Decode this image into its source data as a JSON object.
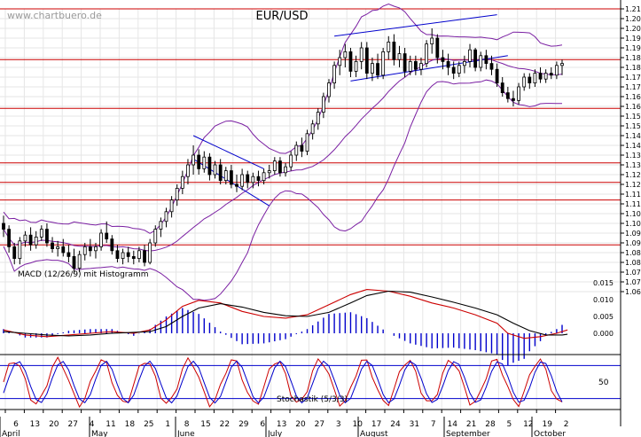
{
  "watermark": "www.chartbuero.de",
  "chart_data": {
    "type": "candlestick",
    "title": "EUR/USD",
    "ylim": [
      1.06,
      1.21
    ],
    "y_ticks": [
      "1.210",
      "1.205",
      "1.200",
      "1.195",
      "1.190",
      "1.185",
      "1.180",
      "1.175",
      "1.170",
      "1.165",
      "1.160",
      "1.155",
      "1.150",
      "1.145",
      "1.140",
      "1.135",
      "1.130",
      "1.125",
      "1.120",
      "1.115",
      "1.110",
      "1.105",
      "1.100",
      "1.095",
      "1.090",
      "1.085",
      "1.080",
      "1.075",
      "1.070",
      "1.065"
    ],
    "x_day_ticks": [
      "6",
      "13",
      "20",
      "27",
      "4",
      "11",
      "18",
      "25",
      "1",
      "8",
      "15",
      "22",
      "29",
      "6",
      "13",
      "20",
      "27",
      "3",
      "10",
      "17",
      "24",
      "31",
      "7",
      "14",
      "21",
      "28",
      "5",
      "12",
      "19",
      "2"
    ],
    "x_month_labels": [
      "April",
      "May",
      "June",
      "July",
      "August",
      "September",
      "October"
    ],
    "resistance_lines": [
      1.21,
      1.184,
      1.159,
      1.131,
      1.121,
      1.112,
      1.089
    ],
    "candles": [
      {
        "o": 1.1,
        "h": 1.104,
        "l": 1.093,
        "c": 1.097
      },
      {
        "o": 1.097,
        "h": 1.099,
        "l": 1.085,
        "c": 1.088
      },
      {
        "o": 1.088,
        "h": 1.09,
        "l": 1.079,
        "c": 1.082
      },
      {
        "o": 1.082,
        "h": 1.093,
        "l": 1.079,
        "c": 1.091
      },
      {
        "o": 1.091,
        "h": 1.096,
        "l": 1.088,
        "c": 1.094
      },
      {
        "o": 1.094,
        "h": 1.098,
        "l": 1.086,
        "c": 1.089
      },
      {
        "o": 1.089,
        "h": 1.096,
        "l": 1.087,
        "c": 1.093
      },
      {
        "o": 1.093,
        "h": 1.099,
        "l": 1.091,
        "c": 1.097
      },
      {
        "o": 1.097,
        "h": 1.1,
        "l": 1.088,
        "c": 1.09
      },
      {
        "o": 1.09,
        "h": 1.093,
        "l": 1.085,
        "c": 1.087
      },
      {
        "o": 1.087,
        "h": 1.091,
        "l": 1.083,
        "c": 1.088
      },
      {
        "o": 1.088,
        "h": 1.092,
        "l": 1.083,
        "c": 1.085
      },
      {
        "o": 1.085,
        "h": 1.089,
        "l": 1.08,
        "c": 1.083
      },
      {
        "o": 1.083,
        "h": 1.087,
        "l": 1.074,
        "c": 1.077
      },
      {
        "o": 1.077,
        "h": 1.086,
        "l": 1.075,
        "c": 1.084
      },
      {
        "o": 1.084,
        "h": 1.09,
        "l": 1.081,
        "c": 1.088
      },
      {
        "o": 1.088,
        "h": 1.092,
        "l": 1.083,
        "c": 1.086
      },
      {
        "o": 1.086,
        "h": 1.09,
        "l": 1.082,
        "c": 1.088
      },
      {
        "o": 1.088,
        "h": 1.097,
        "l": 1.086,
        "c": 1.095
      },
      {
        "o": 1.095,
        "h": 1.101,
        "l": 1.09,
        "c": 1.092
      },
      {
        "o": 1.092,
        "h": 1.094,
        "l": 1.084,
        "c": 1.086
      },
      {
        "o": 1.086,
        "h": 1.089,
        "l": 1.08,
        "c": 1.082
      },
      {
        "o": 1.082,
        "h": 1.087,
        "l": 1.079,
        "c": 1.085
      },
      {
        "o": 1.085,
        "h": 1.088,
        "l": 1.08,
        "c": 1.083
      },
      {
        "o": 1.083,
        "h": 1.086,
        "l": 1.079,
        "c": 1.082
      },
      {
        "o": 1.082,
        "h": 1.088,
        "l": 1.08,
        "c": 1.086
      },
      {
        "o": 1.086,
        "h": 1.089,
        "l": 1.078,
        "c": 1.08
      },
      {
        "o": 1.08,
        "h": 1.092,
        "l": 1.079,
        "c": 1.09
      },
      {
        "o": 1.09,
        "h": 1.099,
        "l": 1.088,
        "c": 1.097
      },
      {
        "o": 1.097,
        "h": 1.103,
        "l": 1.093,
        "c": 1.101
      },
      {
        "o": 1.101,
        "h": 1.108,
        "l": 1.098,
        "c": 1.106
      },
      {
        "o": 1.106,
        "h": 1.114,
        "l": 1.103,
        "c": 1.112
      },
      {
        "o": 1.112,
        "h": 1.12,
        "l": 1.109,
        "c": 1.118
      },
      {
        "o": 1.118,
        "h": 1.127,
        "l": 1.115,
        "c": 1.124
      },
      {
        "o": 1.124,
        "h": 1.133,
        "l": 1.12,
        "c": 1.13
      },
      {
        "o": 1.13,
        "h": 1.14,
        "l": 1.125,
        "c": 1.135
      },
      {
        "o": 1.135,
        "h": 1.138,
        "l": 1.125,
        "c": 1.128
      },
      {
        "o": 1.128,
        "h": 1.137,
        "l": 1.126,
        "c": 1.134
      },
      {
        "o": 1.134,
        "h": 1.136,
        "l": 1.122,
        "c": 1.125
      },
      {
        "o": 1.125,
        "h": 1.132,
        "l": 1.123,
        "c": 1.13
      },
      {
        "o": 1.13,
        "h": 1.133,
        "l": 1.12,
        "c": 1.122
      },
      {
        "o": 1.122,
        "h": 1.129,
        "l": 1.12,
        "c": 1.127
      },
      {
        "o": 1.127,
        "h": 1.13,
        "l": 1.118,
        "c": 1.12
      },
      {
        "o": 1.12,
        "h": 1.125,
        "l": 1.116,
        "c": 1.119
      },
      {
        "o": 1.119,
        "h": 1.128,
        "l": 1.117,
        "c": 1.125
      },
      {
        "o": 1.125,
        "h": 1.127,
        "l": 1.118,
        "c": 1.121
      },
      {
        "o": 1.121,
        "h": 1.126,
        "l": 1.118,
        "c": 1.124
      },
      {
        "o": 1.124,
        "h": 1.127,
        "l": 1.119,
        "c": 1.122
      },
      {
        "o": 1.122,
        "h": 1.128,
        "l": 1.12,
        "c": 1.126
      },
      {
        "o": 1.126,
        "h": 1.13,
        "l": 1.123,
        "c": 1.127
      },
      {
        "o": 1.127,
        "h": 1.134,
        "l": 1.125,
        "c": 1.132
      },
      {
        "o": 1.132,
        "h": 1.134,
        "l": 1.124,
        "c": 1.126
      },
      {
        "o": 1.126,
        "h": 1.131,
        "l": 1.124,
        "c": 1.129
      },
      {
        "o": 1.129,
        "h": 1.137,
        "l": 1.127,
        "c": 1.135
      },
      {
        "o": 1.135,
        "h": 1.142,
        "l": 1.132,
        "c": 1.14
      },
      {
        "o": 1.14,
        "h": 1.144,
        "l": 1.134,
        "c": 1.137
      },
      {
        "o": 1.137,
        "h": 1.148,
        "l": 1.135,
        "c": 1.146
      },
      {
        "o": 1.146,
        "h": 1.153,
        "l": 1.143,
        "c": 1.151
      },
      {
        "o": 1.151,
        "h": 1.159,
        "l": 1.148,
        "c": 1.157
      },
      {
        "o": 1.157,
        "h": 1.167,
        "l": 1.154,
        "c": 1.165
      },
      {
        "o": 1.165,
        "h": 1.174,
        "l": 1.162,
        "c": 1.172
      },
      {
        "o": 1.172,
        "h": 1.183,
        "l": 1.169,
        "c": 1.181
      },
      {
        "o": 1.181,
        "h": 1.189,
        "l": 1.176,
        "c": 1.185
      },
      {
        "o": 1.185,
        "h": 1.192,
        "l": 1.18,
        "c": 1.188
      },
      {
        "o": 1.188,
        "h": 1.19,
        "l": 1.175,
        "c": 1.178
      },
      {
        "o": 1.178,
        "h": 1.186,
        "l": 1.175,
        "c": 1.183
      },
      {
        "o": 1.183,
        "h": 1.193,
        "l": 1.179,
        "c": 1.19
      },
      {
        "o": 1.19,
        "h": 1.193,
        "l": 1.174,
        "c": 1.177
      },
      {
        "o": 1.177,
        "h": 1.185,
        "l": 1.173,
        "c": 1.182
      },
      {
        "o": 1.182,
        "h": 1.187,
        "l": 1.174,
        "c": 1.176
      },
      {
        "o": 1.176,
        "h": 1.19,
        "l": 1.174,
        "c": 1.188
      },
      {
        "o": 1.188,
        "h": 1.196,
        "l": 1.184,
        "c": 1.193
      },
      {
        "o": 1.193,
        "h": 1.197,
        "l": 1.181,
        "c": 1.184
      },
      {
        "o": 1.184,
        "h": 1.191,
        "l": 1.18,
        "c": 1.187
      },
      {
        "o": 1.187,
        "h": 1.19,
        "l": 1.175,
        "c": 1.178
      },
      {
        "o": 1.178,
        "h": 1.186,
        "l": 1.176,
        "c": 1.183
      },
      {
        "o": 1.183,
        "h": 1.186,
        "l": 1.176,
        "c": 1.179
      },
      {
        "o": 1.179,
        "h": 1.185,
        "l": 1.176,
        "c": 1.182
      },
      {
        "o": 1.182,
        "h": 1.194,
        "l": 1.18,
        "c": 1.192
      },
      {
        "o": 1.192,
        "h": 1.2,
        "l": 1.187,
        "c": 1.195
      },
      {
        "o": 1.195,
        "h": 1.197,
        "l": 1.182,
        "c": 1.185
      },
      {
        "o": 1.185,
        "h": 1.189,
        "l": 1.179,
        "c": 1.183
      },
      {
        "o": 1.183,
        "h": 1.187,
        "l": 1.176,
        "c": 1.18
      },
      {
        "o": 1.18,
        "h": 1.183,
        "l": 1.174,
        "c": 1.177
      },
      {
        "o": 1.177,
        "h": 1.183,
        "l": 1.175,
        "c": 1.181
      },
      {
        "o": 1.181,
        "h": 1.186,
        "l": 1.177,
        "c": 1.183
      },
      {
        "o": 1.183,
        "h": 1.192,
        "l": 1.18,
        "c": 1.189
      },
      {
        "o": 1.189,
        "h": 1.19,
        "l": 1.178,
        "c": 1.18
      },
      {
        "o": 1.18,
        "h": 1.188,
        "l": 1.178,
        "c": 1.186
      },
      {
        "o": 1.186,
        "h": 1.189,
        "l": 1.179,
        "c": 1.182
      },
      {
        "o": 1.182,
        "h": 1.186,
        "l": 1.176,
        "c": 1.179
      },
      {
        "o": 1.179,
        "h": 1.182,
        "l": 1.17,
        "c": 1.172
      },
      {
        "o": 1.172,
        "h": 1.175,
        "l": 1.165,
        "c": 1.167
      },
      {
        "o": 1.167,
        "h": 1.17,
        "l": 1.162,
        "c": 1.164
      },
      {
        "o": 1.164,
        "h": 1.168,
        "l": 1.16,
        "c": 1.163
      },
      {
        "o": 1.163,
        "h": 1.172,
        "l": 1.161,
        "c": 1.17
      },
      {
        "o": 1.17,
        "h": 1.177,
        "l": 1.168,
        "c": 1.175
      },
      {
        "o": 1.175,
        "h": 1.177,
        "l": 1.169,
        "c": 1.172
      },
      {
        "o": 1.172,
        "h": 1.179,
        "l": 1.17,
        "c": 1.177
      },
      {
        "o": 1.177,
        "h": 1.18,
        "l": 1.172,
        "c": 1.174
      },
      {
        "o": 1.174,
        "h": 1.179,
        "l": 1.172,
        "c": 1.177
      },
      {
        "o": 1.177,
        "h": 1.18,
        "l": 1.174,
        "c": 1.176
      },
      {
        "o": 1.176,
        "h": 1.183,
        "l": 1.174,
        "c": 1.181
      },
      {
        "o": 1.181,
        "h": 1.184,
        "l": 1.176,
        "c": 1.182
      }
    ],
    "macd": {
      "label": "MACD (12/26/9) mit Histogramm",
      "ylim": [
        -0.005,
        0.02
      ],
      "y_ticks": [
        "0.015",
        "0.010",
        "0.005",
        "0.000"
      ],
      "macd_x": [
        0,
        4,
        8,
        12,
        16,
        20,
        24,
        27,
        30,
        33,
        36,
        40,
        44,
        48,
        52,
        56,
        60,
        64,
        67,
        71,
        75,
        79,
        83,
        87,
        91,
        93,
        96,
        99,
        102,
        104
      ],
      "macd_values": [
        0.001,
        -0.0005,
        -0.001,
        -0.0005,
        0.0,
        0.0005,
        0.0,
        0.001,
        0.004,
        0.008,
        0.0098,
        0.009,
        0.0065,
        0.005,
        0.0045,
        0.0055,
        0.0085,
        0.0115,
        0.013,
        0.0125,
        0.011,
        0.009,
        0.0075,
        0.0055,
        0.003,
        0.0,
        -0.0015,
        -0.001,
        0.0,
        0.001
      ],
      "signal_x": [
        0,
        4,
        8,
        12,
        16,
        20,
        24,
        27,
        30,
        33,
        36,
        40,
        44,
        48,
        52,
        56,
        60,
        64,
        67,
        71,
        75,
        79,
        83,
        87,
        91,
        94,
        97,
        100,
        103,
        104
      ],
      "signal_values": [
        0.0005,
        0.0,
        -0.0005,
        -0.0008,
        -0.0005,
        0.0,
        0.0003,
        0.0005,
        0.002,
        0.005,
        0.0075,
        0.0088,
        0.0078,
        0.0062,
        0.0052,
        0.005,
        0.0062,
        0.009,
        0.0112,
        0.0125,
        0.0122,
        0.0108,
        0.0092,
        0.0075,
        0.0055,
        0.003,
        0.0008,
        -0.0005,
        -0.0005,
        -0.0003
      ]
    },
    "stochastic": {
      "label": "Stochastik (5/3/3)",
      "ylim": [
        0,
        100
      ],
      "y_ticks": [
        "50"
      ],
      "levels": [
        80,
        20
      ]
    }
  }
}
